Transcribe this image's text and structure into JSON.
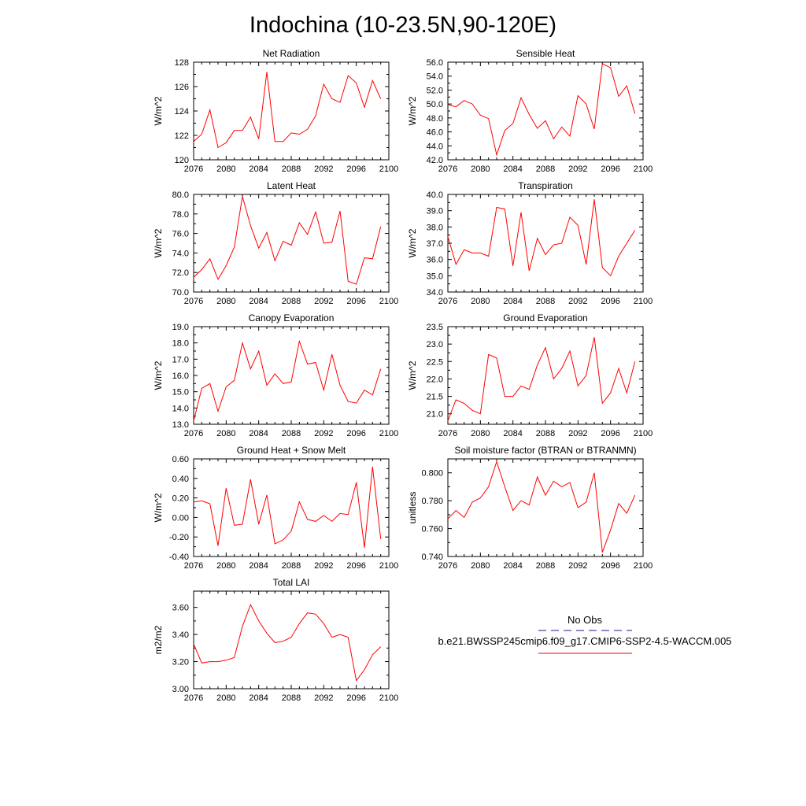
{
  "title": "Indochina (10-23.5N,90-120E)",
  "colors": {
    "series": "#ff0000",
    "obs": "#1a1a8c",
    "axis": "#000000"
  },
  "legend": {
    "obs_label": "No Obs",
    "model_label": "b.e21.BWSSP245cmip6.f09_g17.CMIP6-SSP2-4.5-WACCM.005"
  },
  "chart_data": [
    {
      "type": "line",
      "title": "Net Radiation",
      "ylabel": "W/m^2",
      "xlim": [
        2076,
        2100
      ],
      "ylim": [
        120,
        128
      ],
      "xticks": [
        2076,
        2080,
        2084,
        2088,
        2092,
        2096,
        2100
      ],
      "xtick_labels": [
        "2076",
        "2080",
        "2084",
        "2088",
        "2092",
        "2096",
        "2100"
      ],
      "yticks": [
        120,
        122,
        124,
        126,
        128
      ],
      "ytick_labels": [
        "120",
        "122",
        "124",
        "126",
        "128"
      ],
      "x": [
        2076,
        2077,
        2078,
        2079,
        2080,
        2081,
        2082,
        2083,
        2084,
        2085,
        2086,
        2087,
        2088,
        2089,
        2090,
        2091,
        2092,
        2093,
        2094,
        2095,
        2096,
        2097,
        2098,
        2099
      ],
      "values": [
        121.5,
        122.1,
        124.1,
        121.0,
        121.4,
        122.4,
        122.4,
        123.5,
        121.7,
        127.2,
        121.5,
        121.5,
        122.2,
        122.1,
        122.5,
        123.6,
        126.2,
        125.0,
        124.7,
        126.9,
        126.3,
        124.3,
        126.5,
        125.0
      ]
    },
    {
      "type": "line",
      "title": "Sensible Heat",
      "ylabel": "W/m^2",
      "xlim": [
        2076,
        2100
      ],
      "ylim": [
        42,
        56
      ],
      "xticks": [
        2076,
        2080,
        2084,
        2088,
        2092,
        2096,
        2100
      ],
      "xtick_labels": [
        "2076",
        "2080",
        "2084",
        "2088",
        "2092",
        "2096",
        "2100"
      ],
      "yticks": [
        42,
        44,
        46,
        48,
        50,
        52,
        54,
        56
      ],
      "ytick_labels": [
        "42.0",
        "44.0",
        "46.0",
        "48.0",
        "50.0",
        "52.0",
        "54.0",
        "56.0"
      ],
      "x": [
        2076,
        2077,
        2078,
        2079,
        2080,
        2081,
        2082,
        2083,
        2084,
        2085,
        2086,
        2087,
        2088,
        2089,
        2090,
        2091,
        2092,
        2093,
        2094,
        2095,
        2096,
        2097,
        2098,
        2099
      ],
      "values": [
        49.9,
        49.6,
        50.5,
        50.0,
        48.4,
        47.9,
        42.7,
        46.2,
        47.2,
        50.9,
        48.5,
        46.5,
        47.6,
        45.0,
        46.7,
        45.4,
        51.2,
        50.0,
        46.4,
        55.8,
        55.2,
        51.1,
        52.6,
        48.6
      ]
    },
    {
      "type": "line",
      "title": "Latent Heat",
      "ylabel": "W/m^2",
      "xlim": [
        2076,
        2100
      ],
      "ylim": [
        70,
        80
      ],
      "xticks": [
        2076,
        2080,
        2084,
        2088,
        2092,
        2096,
        2100
      ],
      "xtick_labels": [
        "2076",
        "2080",
        "2084",
        "2088",
        "2092",
        "2096",
        "2100"
      ],
      "yticks": [
        70,
        72,
        74,
        76,
        78,
        80
      ],
      "ytick_labels": [
        "70.0",
        "72.0",
        "74.0",
        "76.0",
        "78.0",
        "80.0"
      ],
      "x": [
        2076,
        2077,
        2078,
        2079,
        2080,
        2081,
        2082,
        2083,
        2084,
        2085,
        2086,
        2087,
        2088,
        2089,
        2090,
        2091,
        2092,
        2093,
        2094,
        2095,
        2096,
        2097,
        2098,
        2099
      ],
      "values": [
        71.5,
        72.3,
        73.4,
        71.3,
        72.7,
        74.6,
        79.8,
        76.8,
        74.5,
        76.1,
        73.2,
        75.2,
        74.8,
        77.1,
        75.9,
        78.2,
        75.0,
        75.1,
        78.3,
        71.1,
        70.8,
        73.5,
        73.4,
        76.7
      ]
    },
    {
      "type": "line",
      "title": "Transpiration",
      "ylabel": "W/m^2",
      "xlim": [
        2076,
        2100
      ],
      "ylim": [
        34,
        40
      ],
      "xticks": [
        2076,
        2080,
        2084,
        2088,
        2092,
        2096,
        2100
      ],
      "xtick_labels": [
        "2076",
        "2080",
        "2084",
        "2088",
        "2092",
        "2096",
        "2100"
      ],
      "yticks": [
        34,
        35,
        36,
        37,
        38,
        39,
        40
      ],
      "ytick_labels": [
        "34.0",
        "35.0",
        "36.0",
        "37.0",
        "38.0",
        "39.0",
        "40.0"
      ],
      "x": [
        2076,
        2077,
        2078,
        2079,
        2080,
        2081,
        2082,
        2083,
        2084,
        2085,
        2086,
        2087,
        2088,
        2089,
        2090,
        2091,
        2092,
        2093,
        2094,
        2095,
        2096,
        2097,
        2098,
        2099
      ],
      "values": [
        37.4,
        35.7,
        36.6,
        36.4,
        36.4,
        36.2,
        39.2,
        39.1,
        35.6,
        38.9,
        35.3,
        37.3,
        36.3,
        36.9,
        37.0,
        38.6,
        38.1,
        35.7,
        39.7,
        35.5,
        35.0,
        36.2,
        37.0,
        37.8
      ]
    },
    {
      "type": "line",
      "title": "Canopy Evaporation",
      "ylabel": "W/m^2",
      "xlim": [
        2076,
        2100
      ],
      "ylim": [
        13,
        19
      ],
      "xticks": [
        2076,
        2080,
        2084,
        2088,
        2092,
        2096,
        2100
      ],
      "xtick_labels": [
        "2076",
        "2080",
        "2084",
        "2088",
        "2092",
        "2096",
        "2100"
      ],
      "yticks": [
        13,
        14,
        15,
        16,
        17,
        18,
        19
      ],
      "ytick_labels": [
        "13.0",
        "14.0",
        "15.0",
        "16.0",
        "17.0",
        "18.0",
        "19.0"
      ],
      "x": [
        2076,
        2077,
        2078,
        2079,
        2080,
        2081,
        2082,
        2083,
        2084,
        2085,
        2086,
        2087,
        2088,
        2089,
        2090,
        2091,
        2092,
        2093,
        2094,
        2095,
        2096,
        2097,
        2098,
        2099
      ],
      "values": [
        13.2,
        15.2,
        15.5,
        13.8,
        15.3,
        15.7,
        18.0,
        16.4,
        17.5,
        15.4,
        16.1,
        15.5,
        15.6,
        18.1,
        16.7,
        16.8,
        15.1,
        17.3,
        15.4,
        14.4,
        14.3,
        15.1,
        14.8,
        16.4
      ]
    },
    {
      "type": "line",
      "title": "Ground Evaporation",
      "ylabel": "W/m^2",
      "xlim": [
        2076,
        2100
      ],
      "ylim": [
        20.7,
        23.5
      ],
      "xticks": [
        2076,
        2080,
        2084,
        2088,
        2092,
        2096,
        2100
      ],
      "xtick_labels": [
        "2076",
        "2080",
        "2084",
        "2088",
        "2092",
        "2096",
        "2100"
      ],
      "yticks": [
        21.0,
        21.5,
        22.0,
        22.5,
        23.0,
        23.5
      ],
      "ytick_labels": [
        "21.0",
        "21.5",
        "22.0",
        "22.5",
        "23.0",
        "23.5"
      ],
      "x": [
        2076,
        2077,
        2078,
        2079,
        2080,
        2081,
        2082,
        2083,
        2084,
        2085,
        2086,
        2087,
        2088,
        2089,
        2090,
        2091,
        2092,
        2093,
        2094,
        2095,
        2096,
        2097,
        2098,
        2099
      ],
      "values": [
        20.8,
        21.4,
        21.3,
        21.1,
        21.0,
        22.7,
        22.6,
        21.5,
        21.5,
        21.8,
        21.7,
        22.4,
        22.9,
        22.0,
        22.3,
        22.8,
        21.8,
        22.1,
        23.2,
        21.3,
        21.6,
        22.3,
        21.6,
        22.5
      ]
    },
    {
      "type": "line",
      "title": "Ground Heat + Snow Melt",
      "ylabel": "W/m^2",
      "xlim": [
        2076,
        2100
      ],
      "ylim": [
        -0.4,
        0.6
      ],
      "xticks": [
        2076,
        2080,
        2084,
        2088,
        2092,
        2096,
        2100
      ],
      "xtick_labels": [
        "2076",
        "2080",
        "2084",
        "2088",
        "2092",
        "2096",
        "2100"
      ],
      "yticks": [
        -0.4,
        -0.2,
        0.0,
        0.2,
        0.4,
        0.6
      ],
      "ytick_labels": [
        "-0.40",
        "-0.20",
        "0.00",
        "0.20",
        "0.40",
        "0.60"
      ],
      "x": [
        2076,
        2077,
        2078,
        2079,
        2080,
        2081,
        2082,
        2083,
        2084,
        2085,
        2086,
        2087,
        2088,
        2089,
        2090,
        2091,
        2092,
        2093,
        2094,
        2095,
        2096,
        2097,
        2098,
        2099
      ],
      "values": [
        0.16,
        0.17,
        0.14,
        -0.29,
        0.3,
        -0.08,
        -0.07,
        0.39,
        -0.07,
        0.23,
        -0.27,
        -0.23,
        -0.14,
        0.16,
        -0.02,
        -0.04,
        0.02,
        -0.04,
        0.04,
        0.03,
        0.36,
        -0.31,
        0.52,
        -0.22
      ]
    },
    {
      "type": "line",
      "title": "Soil moisture factor (BTRAN or BTRANMN)",
      "ylabel": "unitless",
      "xlim": [
        2076,
        2100
      ],
      "ylim": [
        0.74,
        0.81
      ],
      "xticks": [
        2076,
        2080,
        2084,
        2088,
        2092,
        2096,
        2100
      ],
      "xtick_labels": [
        "2076",
        "2080",
        "2084",
        "2088",
        "2092",
        "2096",
        "2100"
      ],
      "yticks": [
        0.74,
        0.76,
        0.78,
        0.8
      ],
      "ytick_labels": [
        "0.740",
        "0.760",
        "0.780",
        "0.800"
      ],
      "x": [
        2076,
        2077,
        2078,
        2079,
        2080,
        2081,
        2082,
        2083,
        2084,
        2085,
        2086,
        2087,
        2088,
        2089,
        2090,
        2091,
        2092,
        2093,
        2094,
        2095,
        2096,
        2097,
        2098,
        2099
      ],
      "values": [
        0.767,
        0.773,
        0.768,
        0.779,
        0.782,
        0.79,
        0.808,
        0.79,
        0.773,
        0.78,
        0.777,
        0.797,
        0.784,
        0.794,
        0.79,
        0.793,
        0.775,
        0.779,
        0.8,
        0.743,
        0.759,
        0.778,
        0.771,
        0.784
      ]
    },
    {
      "type": "line",
      "title": "Total LAI",
      "ylabel": "m2/m2",
      "xlim": [
        2076,
        2100
      ],
      "ylim": [
        3.0,
        3.72
      ],
      "xticks": [
        2076,
        2080,
        2084,
        2088,
        2092,
        2096,
        2100
      ],
      "xtick_labels": [
        "2076",
        "2080",
        "2084",
        "2088",
        "2092",
        "2096",
        "2100"
      ],
      "yticks": [
        3.0,
        3.2,
        3.4,
        3.6
      ],
      "ytick_labels": [
        "3.00",
        "3.20",
        "3.40",
        "3.60"
      ],
      "x": [
        2076,
        2077,
        2078,
        2079,
        2080,
        2081,
        2082,
        2083,
        2084,
        2085,
        2086,
        2087,
        2088,
        2089,
        2090,
        2091,
        2092,
        2093,
        2094,
        2095,
        2096,
        2097,
        2098,
        2099
      ],
      "values": [
        3.33,
        3.19,
        3.2,
        3.2,
        3.21,
        3.23,
        3.46,
        3.62,
        3.5,
        3.41,
        3.34,
        3.35,
        3.38,
        3.48,
        3.56,
        3.55,
        3.48,
        3.38,
        3.4,
        3.38,
        3.06,
        3.14,
        3.25,
        3.31
      ]
    }
  ]
}
